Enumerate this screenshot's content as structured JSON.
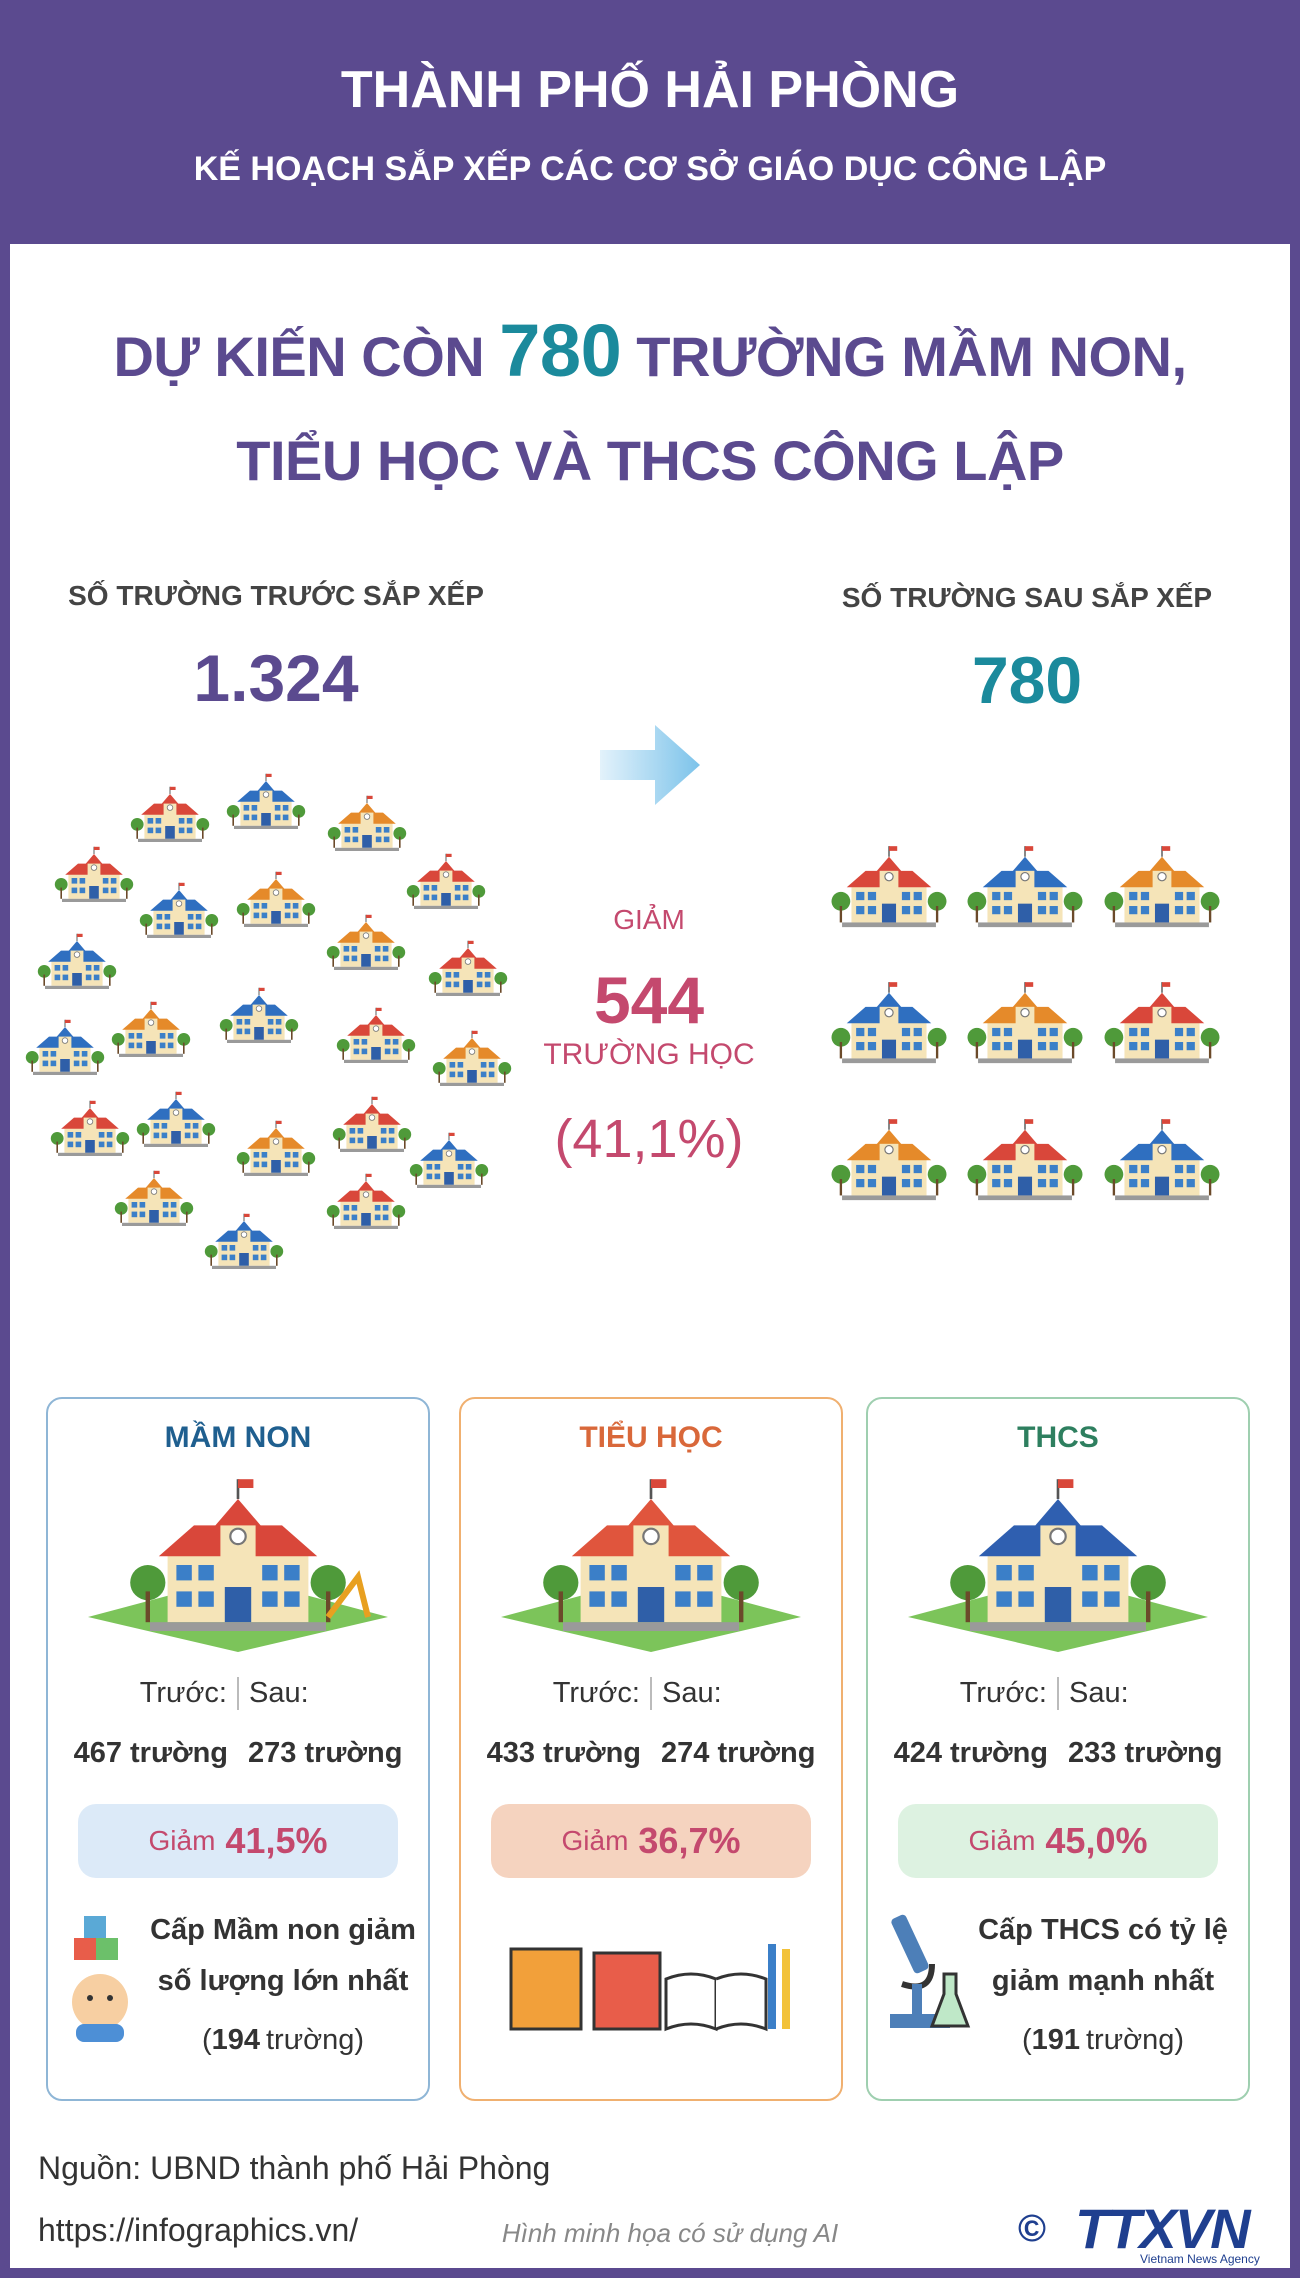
{
  "header": {
    "title": "THÀNH PHỐ HẢI PHÒNG",
    "subtitle": "KẾ HOẠCH SẮP XẾP CÁC CƠ SỞ GIÁO DỤC CÔNG LẬP"
  },
  "headline": {
    "line1_before": "DỰ KIẾN CÒN",
    "line1_number": "780",
    "line1_after": "TRƯỜNG MẦM NON,",
    "line2": "TIỂU HỌC VÀ THCS CÔNG LẬP"
  },
  "before": {
    "label": "SỐ TRƯỜNG TRƯỚC SẮP XẾP",
    "value": "1.324"
  },
  "after": {
    "label": "SỐ TRƯỜNG SAU SẮP XẾP",
    "value": "780"
  },
  "reduction": {
    "label": "GIẢM",
    "value": "544",
    "unit": "TRƯỜNG HỌC",
    "percent": "(41,1%)"
  },
  "cards": [
    {
      "title": "MẦM NON",
      "before_label": "Trước:",
      "after_label": "Sau:",
      "before_value": "467 trường",
      "after_value": "273 trường",
      "reduction_label": "Giảm",
      "reduction_value": "41,5%",
      "note": [
        "Cấp Mầm non giảm",
        "số lượng lớn nhất"
      ],
      "note_open": "(",
      "note_count": "194",
      "note_close": "trường)"
    },
    {
      "title": "TIỂU HỌC",
      "before_label": "Trước:",
      "after_label": "Sau:",
      "before_value": "433 trường",
      "after_value": "274 trường",
      "reduction_label": "Giảm",
      "reduction_value": "36,7%"
    },
    {
      "title": "THCS",
      "before_label": "Trước:",
      "after_label": "Sau:",
      "before_value": "424 trường",
      "after_value": "233 trường",
      "reduction_label": "Giảm",
      "reduction_value": "45,0%",
      "note": [
        "Cấp THCS có tỷ lệ",
        "giảm mạnh nhất"
      ],
      "note_open": "(",
      "note_count": "191",
      "note_close": "trường)"
    }
  ],
  "footer": {
    "source": "Nguồn: UBND thành phố Hải Phòng",
    "url": "https://infographics.vn/",
    "disclaimer": "Hình minh họa có sử dụng AI",
    "logo": {
      "symbol": "©",
      "name": "TTXVN",
      "tagline": "Vietnam News Agency"
    }
  }
}
